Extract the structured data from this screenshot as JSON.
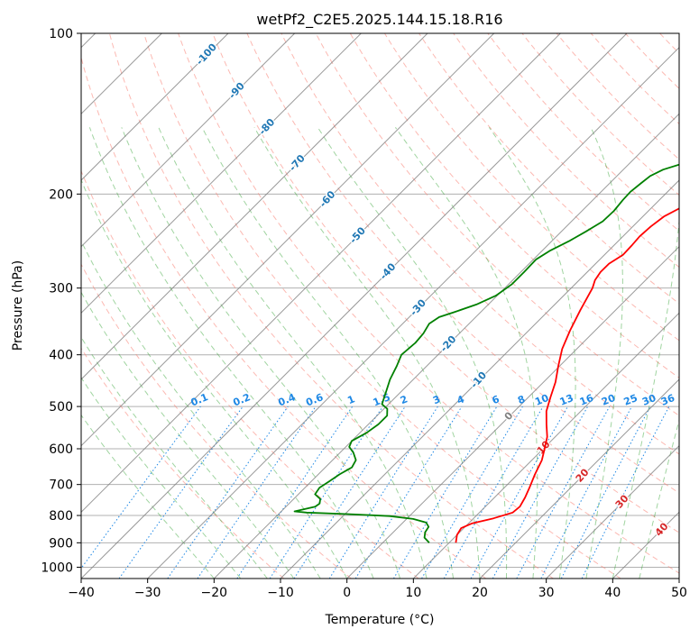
{
  "chart_data": {
    "type": "line",
    "chart_kind": "skew-t log-p sounding",
    "title": "wetPf2_C2E5.2025.144.15.18.R16",
    "xlabel": "Temperature (°C)",
    "ylabel": "Pressure (hPa)",
    "xlim": [
      -40,
      50
    ],
    "ylim": [
      1050,
      100
    ],
    "yscale": "log",
    "grid": true,
    "x_ticks": [
      -40,
      -30,
      -20,
      -10,
      0,
      10,
      20,
      30,
      40,
      50
    ],
    "y_ticks": [
      100,
      200,
      300,
      400,
      500,
      600,
      700,
      800,
      900,
      1000
    ],
    "colors": {
      "temperature": "#ff0000",
      "dewpoint": "#008000",
      "dry_adiabat": "#fa8072",
      "moist_adiabat": "#2ca02c",
      "mixing_ratio": "#1e88e5",
      "isotherm": "#808080",
      "isotherm_label": "#1f77b4",
      "wetbulb_label": "#d62728"
    },
    "series": [
      {
        "role": "temperature",
        "points": [
          [
            11,
            900
          ],
          [
            10,
            870
          ],
          [
            9.6,
            845
          ],
          [
            10.5,
            828
          ],
          [
            13,
            810
          ],
          [
            15,
            790
          ],
          [
            15.2,
            770
          ],
          [
            14.6,
            740
          ],
          [
            13.8,
            710
          ],
          [
            12.6,
            670
          ],
          [
            11.5,
            630
          ],
          [
            10.2,
            600
          ],
          [
            8.8,
            570
          ],
          [
            6.8,
            540
          ],
          [
            4.8,
            510
          ],
          [
            3.3,
            480
          ],
          [
            1.8,
            450
          ],
          [
            -0.2,
            420
          ],
          [
            -2.2,
            390
          ],
          [
            -3.8,
            360
          ],
          [
            -5.3,
            330
          ],
          [
            -6.8,
            300
          ],
          [
            -7.6,
            290
          ],
          [
            -8,
            280
          ],
          [
            -8,
            270
          ],
          [
            -7.2,
            260
          ],
          [
            -7.3,
            250
          ],
          [
            -7.5,
            240
          ],
          [
            -7.3,
            230
          ],
          [
            -6.8,
            220
          ],
          [
            -5.3,
            210
          ],
          [
            -3.6,
            200
          ],
          [
            -1.5,
            190
          ],
          [
            0.4,
            180
          ],
          [
            2,
            170
          ],
          [
            3.5,
            160
          ],
          [
            4.2,
            150
          ],
          [
            5,
            140
          ],
          [
            5.8,
            130
          ],
          [
            6.3,
            120
          ],
          [
            7.5,
            110
          ],
          [
            9.5,
            100
          ]
        ]
      },
      {
        "role": "dewpoint",
        "points": [
          [
            7,
            900
          ],
          [
            5.5,
            880
          ],
          [
            4.8,
            860
          ],
          [
            4.5,
            840
          ],
          [
            3.5,
            825
          ],
          [
            1,
            812
          ],
          [
            -3,
            802
          ],
          [
            -10,
            795
          ],
          [
            -16,
            790
          ],
          [
            -18,
            786
          ],
          [
            -15.6,
            770
          ],
          [
            -15.4,
            760
          ],
          [
            -16,
            745
          ],
          [
            -17.5,
            730
          ],
          [
            -17.8,
            710
          ],
          [
            -17.3,
            690
          ],
          [
            -16.8,
            670
          ],
          [
            -16,
            650
          ],
          [
            -16.5,
            630
          ],
          [
            -18,
            610
          ],
          [
            -19.5,
            595
          ],
          [
            -20,
            580
          ],
          [
            -19,
            560
          ],
          [
            -18.5,
            540
          ],
          [
            -18.5,
            520
          ],
          [
            -19.5,
            505
          ],
          [
            -21,
            495
          ],
          [
            -22.2,
            470
          ],
          [
            -23.5,
            445
          ],
          [
            -24.5,
            420
          ],
          [
            -25.5,
            400
          ],
          [
            -25.2,
            380
          ],
          [
            -25.4,
            365
          ],
          [
            -26,
            350
          ],
          [
            -25.5,
            340
          ],
          [
            -24,
            333
          ],
          [
            -21.8,
            322
          ],
          [
            -20.2,
            310
          ],
          [
            -19.5,
            295
          ],
          [
            -19.5,
            280
          ],
          [
            -19.6,
            265
          ],
          [
            -18.8,
            255
          ],
          [
            -17.4,
            245
          ],
          [
            -16.3,
            235
          ],
          [
            -15.3,
            225
          ],
          [
            -15.2,
            215
          ],
          [
            -15.5,
            205
          ],
          [
            -15.6,
            198
          ],
          [
            -15.3,
            191
          ],
          [
            -15,
            185
          ],
          [
            -14,
            180
          ],
          [
            -12.3,
            176
          ],
          [
            -10.5,
            168
          ],
          [
            -10.3,
            160
          ],
          [
            -10.7,
            150
          ],
          [
            -10.6,
            140
          ],
          [
            -10.2,
            132
          ],
          [
            -9.4,
            125
          ],
          [
            -8.2,
            118
          ],
          [
            -6.7,
            113
          ],
          [
            -5.2,
            108
          ],
          [
            -3.8,
            104
          ],
          [
            -2.7,
            100
          ]
        ]
      }
    ],
    "isotherm_labels": [
      "-100",
      "-90",
      "-80",
      "-70",
      "-60",
      "-50",
      "-40",
      "-30",
      "-20",
      "-10",
      "0",
      "10",
      "20",
      "30",
      "40"
    ],
    "mixing_ratio_labels": [
      "0.1",
      "0.2",
      "0.4",
      "0.6",
      "1",
      "1.5",
      "2",
      "3",
      "4",
      "6",
      "8",
      "10",
      "13",
      "16",
      "20",
      "25",
      "30",
      "36"
    ]
  }
}
